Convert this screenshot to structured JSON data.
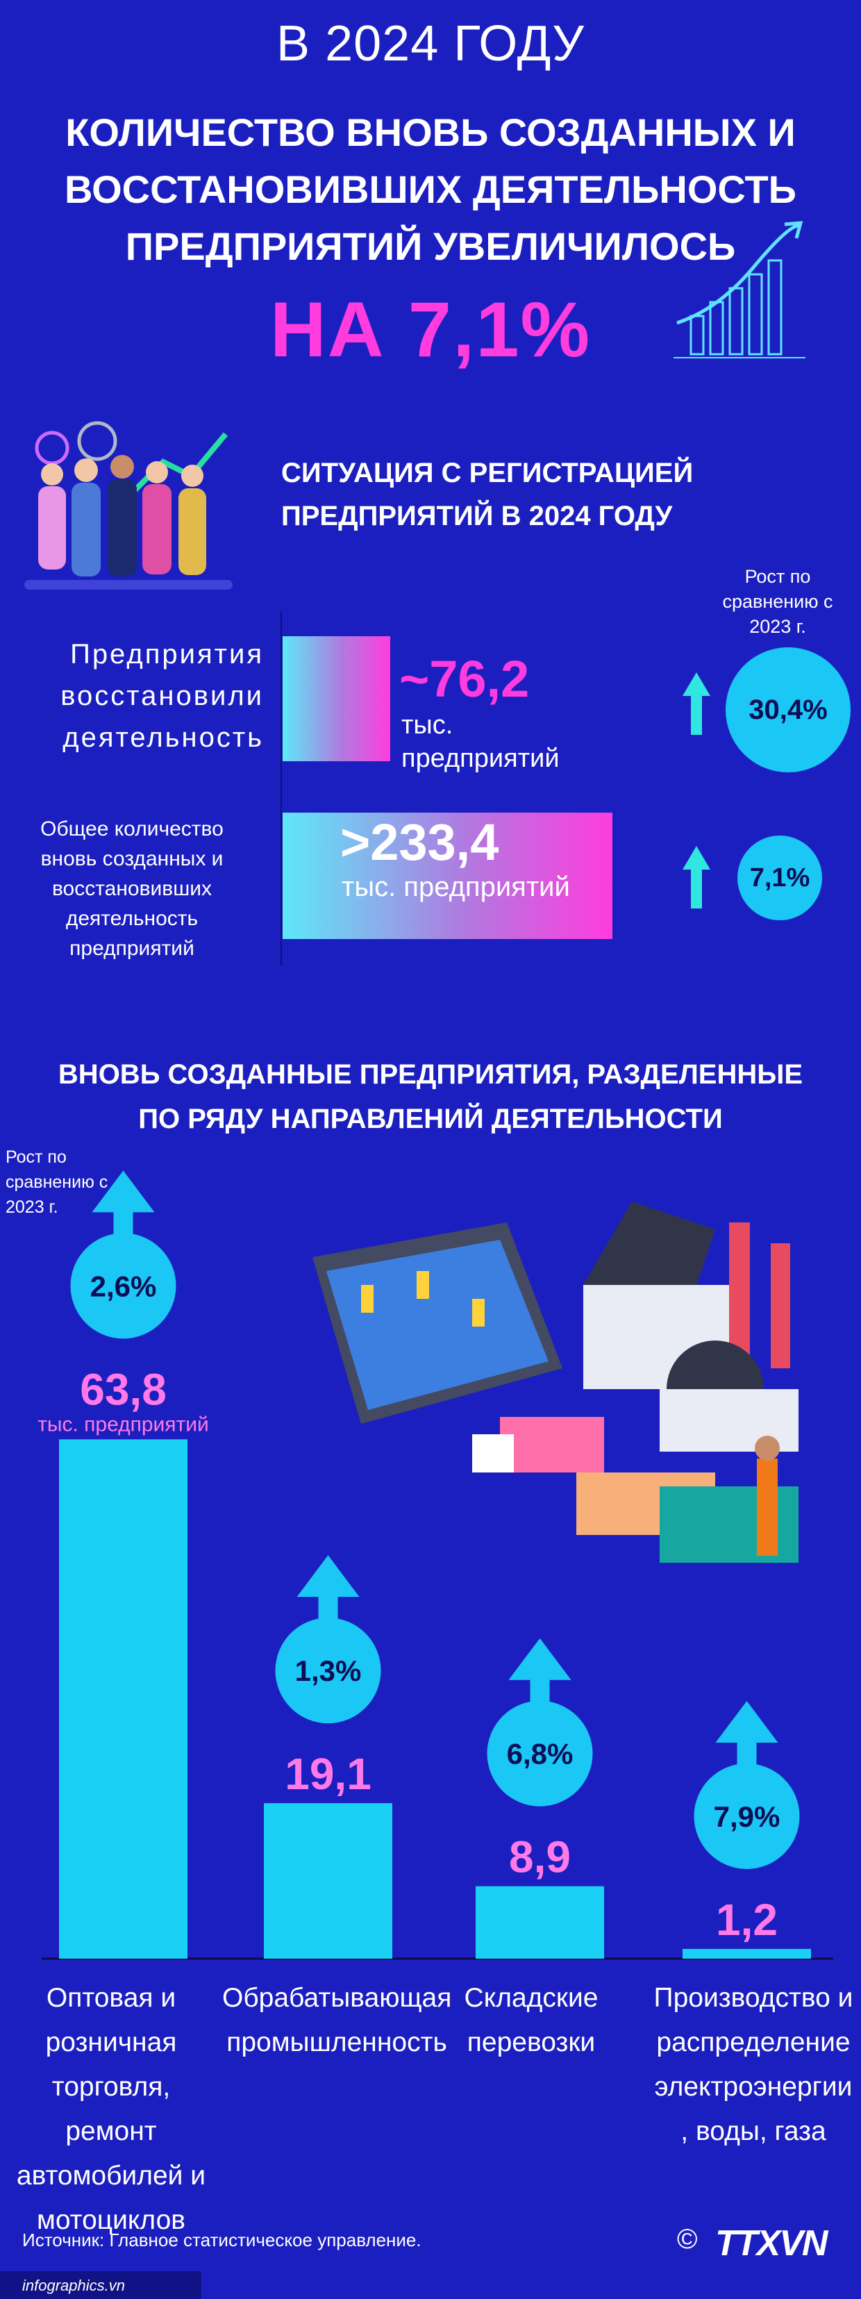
{
  "header": {
    "year_title": "В 2024 ГОДУ",
    "headline": "КОЛИЧЕСТВО ВНОВЬ СОЗДАННЫХ И ВОССТАНОВИВШИХ ДЕЯТЕЛЬНОСТЬ ПРЕДПРИЯТИЙ УВЕЛИЧИЛОСЬ",
    "big_pct": "НА 7,1%"
  },
  "registration": {
    "title": "СИТУАЦИЯ С РЕГИСТРАЦИЕЙ ПРЕДПРИЯТИЙ В 2024 ГОДУ",
    "growth_label": "Рост по сравнению с 2023 г.",
    "rows": [
      {
        "label": "Предприятия восстановили деятельность",
        "value": "~76,2",
        "unit": "тыс. предприятий",
        "growth": "30,4%"
      },
      {
        "label": "Общее количество вновь созданных и восстановивших деятельность предприятий",
        "value": ">233,4",
        "unit": "тыс. предприятий",
        "growth": "7,1%"
      }
    ]
  },
  "sectors": {
    "title": "ВНОВЬ СОЗДАННЫЕ ПРЕДПРИЯТИЯ, РАЗДЕЛЕННЫЕ ПО РЯДУ НАПРАВЛЕНИЙ ДЕЯТЕЛЬНОСТИ",
    "growth_label": "Рост по сравнению с 2023 г.",
    "first_unit": "тыс. предприятий"
  },
  "chart_data": {
    "type": "bar",
    "title": "ВНОВЬ СОЗДАННЫЕ ПРЕДПРИЯТИЯ, РАЗДЕЛЕННЫЕ ПО РЯДУ НАПРАВЛЕНИЙ ДЕЯТЕЛЬНОСТИ",
    "categories": [
      "Оптовая и розничная торговля, ремонт автомобилей и мотоциклов",
      "Обрабатывающая промышленность",
      "Складские перевозки",
      "Производство и распределение электроэнергии , воды, газа"
    ],
    "category_lines": [
      [
        "Оптовая и",
        "розничная",
        "торговля, ремонт",
        "автомобилей и",
        "мотоциклов"
      ],
      [
        "Обрабатывающая",
        "промышленность"
      ],
      [
        "Складские",
        "перевозки"
      ],
      [
        "Производство и",
        "распределение",
        "электроэнергии",
        ", воды, газа"
      ]
    ],
    "values": [
      63.8,
      19.1,
      8.9,
      1.2
    ],
    "value_labels": [
      "63,8",
      "19,1",
      "8,9",
      "1,2"
    ],
    "growth_labels": [
      "2,6%",
      "1,3%",
      "6,8%",
      "7,9%"
    ],
    "unit": "тыс. предприятий",
    "ylim": [
      0,
      64
    ],
    "colors": {
      "bar": "#1ad0f5",
      "value": "#ff7ae8",
      "circle": "#1ac7f5"
    }
  },
  "footer": {
    "source": "Источник: Главное статистическое управление.",
    "site": "infographics.vn",
    "copyright": "©",
    "logo": "TTXVN"
  }
}
